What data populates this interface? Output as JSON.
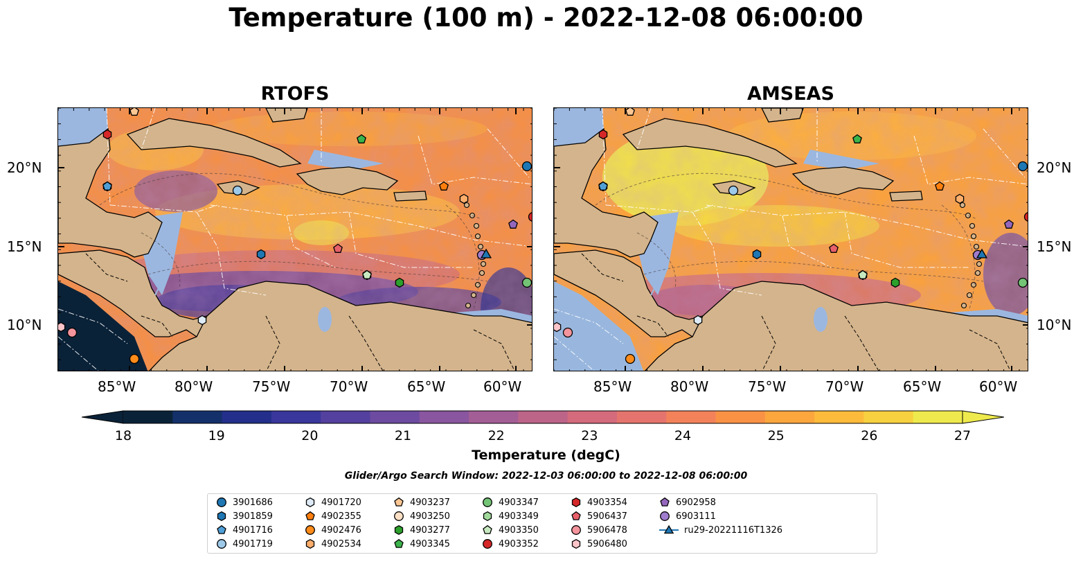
{
  "title": "Temperature (100 m) - 2022-12-08 06:00:00",
  "panels": [
    {
      "title": "RTOFS"
    },
    {
      "title": "AMSEAS"
    }
  ],
  "lon_ticks": [
    "85°W",
    "80°W",
    "75°W",
    "70°W",
    "65°W",
    "60°W"
  ],
  "lat_ticks": [
    "20°N",
    "15°N",
    "10°N"
  ],
  "colorbar": {
    "label": "Temperature (degC)",
    "ticks": [
      "18",
      "19",
      "20",
      "21",
      "22",
      "23",
      "24",
      "25",
      "26",
      "27"
    ],
    "colors": [
      "#0a2238",
      "#14306a",
      "#232f8a",
      "#39379b",
      "#54409e",
      "#6d4ba0",
      "#8a569f",
      "#a45e96",
      "#bd6489",
      "#d36b7c",
      "#e4746d",
      "#f3825b",
      "#fa9246",
      "#fca63e",
      "#fdbb3c",
      "#f7d13f",
      "#eeea4d"
    ]
  },
  "search_window": "Glider/Argo Search Window: 2022-12-03 06:00:00 to 2022-12-08 06:00:00",
  "legend": [
    {
      "label": "3901686",
      "marker": "circle",
      "color": "#1f77b4"
    },
    {
      "label": "3901859",
      "marker": "hexagon",
      "color": "#1f77b4"
    },
    {
      "label": "4901716",
      "marker": "pentagon",
      "color": "#4f9fd6"
    },
    {
      "label": "4901719",
      "marker": "circle",
      "color": "#9ecae9"
    },
    {
      "label": "4901720",
      "marker": "hexagon",
      "color": "#deebf7"
    },
    {
      "label": "4902355",
      "marker": "pentagon",
      "color": "#ff7f0e"
    },
    {
      "label": "4902476",
      "marker": "circle",
      "color": "#ff8c1a"
    },
    {
      "label": "4902534",
      "marker": "hexagon",
      "color": "#fdae6b"
    },
    {
      "label": "4903237",
      "marker": "pentagon",
      "color": "#fdc793"
    },
    {
      "label": "4903250",
      "marker": "circle",
      "color": "#fde0c5"
    },
    {
      "label": "4903277",
      "marker": "hexagon",
      "color": "#2ca02c"
    },
    {
      "label": "4903345",
      "marker": "pentagon",
      "color": "#3cb44b"
    },
    {
      "label": "4903347",
      "marker": "circle",
      "color": "#74c476"
    },
    {
      "label": "4903349",
      "marker": "hexagon",
      "color": "#a1d99b"
    },
    {
      "label": "4903350",
      "marker": "pentagon",
      "color": "#c7e9c0"
    },
    {
      "label": "4903352",
      "marker": "circle",
      "color": "#d62728"
    },
    {
      "label": "4903354",
      "marker": "hexagon",
      "color": "#d62728"
    },
    {
      "label": "5906437",
      "marker": "pentagon",
      "color": "#e8606a"
    },
    {
      "label": "5906478",
      "marker": "circle",
      "color": "#f4949c"
    },
    {
      "label": "5906480",
      "marker": "hexagon",
      "color": "#fbc5c9"
    },
    {
      "label": "6902958",
      "marker": "pentagon",
      "color": "#9467bd"
    },
    {
      "label": "6903111",
      "marker": "circle",
      "color": "#a07ccc"
    },
    {
      "label": "ru29-20221116T1326",
      "marker": "triangle-line",
      "color": "#1f77b4"
    }
  ]
}
